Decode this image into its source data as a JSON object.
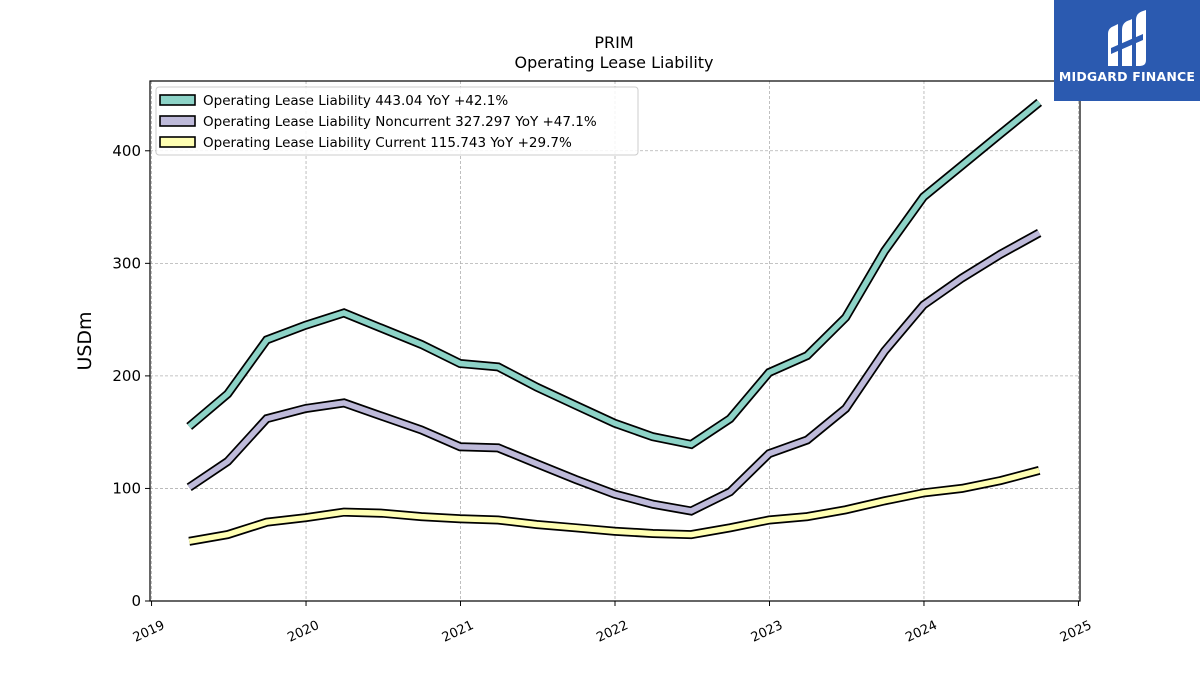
{
  "chart_data": {
    "type": "line",
    "title": "PRIM",
    "subtitle": "Operating Lease Liability",
    "ylabel": "USDm",
    "xlabel": "",
    "ylim": [
      0,
      462
    ],
    "xlim": [
      2018.99,
      2025.01
    ],
    "yticks": [
      0,
      100,
      200,
      300,
      400
    ],
    "xticks": [
      "2019",
      "2020",
      "2021",
      "2022",
      "2023",
      "2024",
      "2025"
    ],
    "grid": true,
    "legend_position": "top-left",
    "x": [
      "2019-03-31",
      "2019-06-30",
      "2019-09-30",
      "2019-12-31",
      "2020-03-31",
      "2020-06-30",
      "2020-09-30",
      "2020-12-31",
      "2021-03-31",
      "2021-06-30",
      "2021-09-30",
      "2021-12-31",
      "2022-03-31",
      "2022-06-30",
      "2022-09-30",
      "2022-12-31",
      "2023-03-31",
      "2023-06-30",
      "2023-09-30",
      "2023-12-31",
      "2024-03-31",
      "2024-06-30",
      "2024-09-30"
    ],
    "series": [
      {
        "name": "Operating Lease Liability  443.04 YoY +42.1%",
        "color": "#8dd3c7",
        "values": [
          155,
          184,
          232,
          245,
          256,
          242,
          228,
          211,
          208,
          190,
          174,
          158,
          146,
          139,
          162,
          203,
          218,
          252,
          311,
          359,
          387,
          415,
          443
        ]
      },
      {
        "name": "Operating Lease Liability Noncurrent  327.297 YoY +47.1%",
        "color": "#bebada",
        "values": [
          101,
          124,
          162,
          171,
          176,
          164,
          152,
          137,
          136,
          122,
          108,
          95,
          86,
          80,
          97,
          131,
          143,
          171,
          222,
          263,
          287,
          308,
          327
        ]
      },
      {
        "name": "Operating Lease Liability Current  115.743 YoY +29.7%",
        "color": "#ffffb3",
        "values": [
          53,
          59,
          70,
          74,
          79,
          78,
          75,
          73,
          72,
          68,
          65,
          62,
          60,
          59,
          65,
          72,
          75,
          81,
          89,
          96,
          100,
          107,
          116
        ]
      }
    ]
  },
  "logo": {
    "text": "MIDGARD FINANCE",
    "background": "#2b5ab0"
  }
}
